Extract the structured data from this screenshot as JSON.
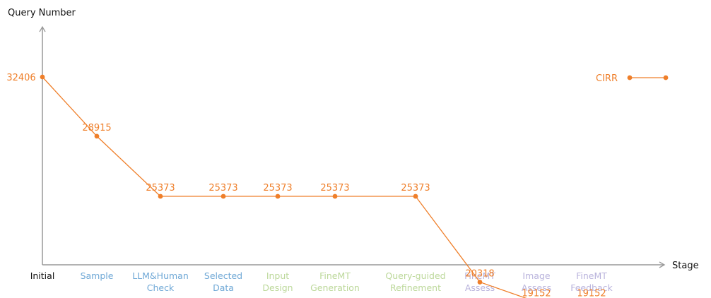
{
  "chart_data": {
    "type": "line",
    "xlabel": "Stage",
    "ylabel": "Query Number",
    "categories": [
      {
        "lines": [
          "Initial"
        ],
        "color": "#111111"
      },
      {
        "lines": [
          "Sample"
        ],
        "color": "#6fa8d6"
      },
      {
        "lines": [
          "LLM&Human",
          "Check"
        ],
        "color": "#6fa8d6"
      },
      {
        "lines": [
          "Selected",
          "Data"
        ],
        "color": "#6fa8d6"
      },
      {
        "lines": [
          "Input",
          "Design"
        ],
        "color": "#bcd89a"
      },
      {
        "lines": [
          "FineMT",
          "Generation"
        ],
        "color": "#bcd89a"
      },
      {
        "lines": [
          "Query-guided",
          "Refinement"
        ],
        "color": "#bcd89a"
      },
      {
        "lines": [
          "FineMT",
          "Assess"
        ],
        "color": "#b9b3dc"
      },
      {
        "lines": [
          "Image",
          "Assess"
        ],
        "color": "#b9b3dc"
      },
      {
        "lines": [
          "FineMT",
          "Feedback"
        ],
        "color": "#b9b3dc"
      }
    ],
    "series": [
      {
        "name": "CIRR",
        "color": "#ef7f2a",
        "points": [
          {
            "category": 0,
            "value": 32406,
            "label": "32406"
          },
          {
            "category": 1,
            "value": 28915,
            "label": "28915"
          },
          {
            "category": 2,
            "value": 25373,
            "label": "25373"
          },
          {
            "category": 3,
            "value": 25373,
            "label": "25373"
          },
          {
            "category": 4,
            "value": 25373,
            "label": "25373"
          },
          {
            "category": 5,
            "value": 25373,
            "label": "25373"
          },
          {
            "category": 6,
            "value": 25373,
            "label": "25373"
          },
          {
            "category": 7,
            "value": 20318,
            "label": "20318"
          },
          {
            "category": 8,
            "value": 19152,
            "label": "19152"
          },
          {
            "category": 9,
            "value": 19152,
            "label": "19152"
          }
        ]
      }
    ],
    "ylim": [
      15000,
      35000
    ],
    "grid": false,
    "legend_position": "top-right"
  }
}
